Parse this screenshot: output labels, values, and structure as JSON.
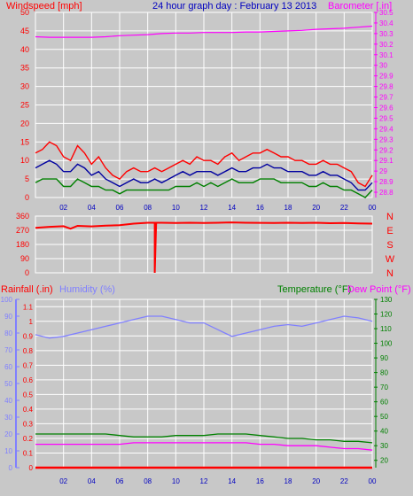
{
  "colors": {
    "background": "#c8c8c8",
    "grid": "#ffffff",
    "wind": "#ff0000",
    "wind_avg": "#0000a0",
    "wind_low": "#008000",
    "barometer": "#ff00ff",
    "direction": "#ff0000",
    "rainfall": "#ff0000",
    "humidity": "#8080ff",
    "temperature": "#008000",
    "dewpoint": "#ff00ff",
    "header_blue": "#0000c0",
    "x_ticks": "#0000c0"
  },
  "header": {
    "windspeed": "Windspeed [mph]",
    "title": "24 hour graph day : February 13 2013",
    "barometer": "Barometer [.in]"
  },
  "labels": {
    "rainfall": "Rainfall (.in)",
    "humidity": "Humidity (%)",
    "temperature": "Temperature (°F)",
    "dewpoint": "Dew Point (°F)"
  },
  "chart_data": [
    {
      "id": "wind",
      "type": "line",
      "title": "24 hour graph day : February 13 2013",
      "x_ticks": [
        "02",
        "04",
        "06",
        "08",
        "10",
        "12",
        "14",
        "16",
        "18",
        "20",
        "22",
        "00"
      ],
      "xlim": [
        0,
        24
      ],
      "ylim_left": [
        0,
        50
      ],
      "y_ticks_left": [
        "0",
        "5",
        "10",
        "15",
        "20",
        "25",
        "30",
        "35",
        "40",
        "45",
        "50"
      ],
      "ylim_right": [
        28.75,
        30.5
      ],
      "y_ticks_right": [
        "28.8",
        "28.9",
        "29",
        "29.1",
        "29.2",
        "29.3",
        "29.4",
        "29.5",
        "29.6",
        "29.7",
        "29.8",
        "29.9",
        "30",
        "30.1",
        "30.2",
        "30.3",
        "30.4",
        "30.5"
      ],
      "grid": true,
      "series": [
        {
          "name": "Windspeed [mph]",
          "axis": "left",
          "color": "#ff0000",
          "x": [
            0,
            0.5,
            1,
            1.5,
            2,
            2.5,
            3,
            3.5,
            4,
            4.5,
            5,
            5.5,
            6,
            6.5,
            7,
            7.5,
            8,
            8.5,
            9,
            9.5,
            10,
            10.5,
            11,
            11.5,
            12,
            12.5,
            13,
            13.5,
            14,
            14.5,
            15,
            15.5,
            16,
            16.5,
            17,
            17.5,
            18,
            18.5,
            19,
            19.5,
            20,
            20.5,
            21,
            21.5,
            22,
            22.5,
            23,
            23.5,
            24
          ],
          "y": [
            12,
            13,
            15,
            14,
            11,
            10,
            14,
            12,
            9,
            11,
            8,
            6,
            5,
            7,
            8,
            7,
            7,
            8,
            7,
            8,
            9,
            10,
            9,
            11,
            10,
            10,
            9,
            11,
            12,
            10,
            11,
            12,
            12,
            13,
            12,
            11,
            11,
            10,
            10,
            9,
            9,
            10,
            9,
            9,
            8,
            7,
            4,
            3,
            6
          ]
        },
        {
          "name": "",
          "axis": "left",
          "color": "#0000a0",
          "x": [
            0,
            0.5,
            1,
            1.5,
            2,
            2.5,
            3,
            3.5,
            4,
            4.5,
            5,
            5.5,
            6,
            6.5,
            7,
            7.5,
            8,
            8.5,
            9,
            9.5,
            10,
            10.5,
            11,
            11.5,
            12,
            12.5,
            13,
            13.5,
            14,
            14.5,
            15,
            15.5,
            16,
            16.5,
            17,
            17.5,
            18,
            18.5,
            19,
            19.5,
            20,
            20.5,
            21,
            21.5,
            22,
            22.5,
            23,
            23.5,
            24
          ],
          "y": [
            8,
            9,
            10,
            9,
            7,
            7,
            9,
            8,
            6,
            7,
            5,
            4,
            3,
            4,
            5,
            4,
            4,
            5,
            4,
            5,
            6,
            7,
            6,
            7,
            7,
            7,
            6,
            7,
            8,
            7,
            7,
            8,
            8,
            9,
            8,
            8,
            7,
            7,
            7,
            6,
            6,
            7,
            6,
            6,
            5,
            4,
            2,
            2,
            4
          ]
        },
        {
          "name": "",
          "axis": "left",
          "color": "#008000",
          "x": [
            0,
            0.5,
            1,
            1.5,
            2,
            2.5,
            3,
            3.5,
            4,
            4.5,
            5,
            5.5,
            6,
            6.5,
            7,
            7.5,
            8,
            8.5,
            9,
            9.5,
            10,
            10.5,
            11,
            11.5,
            12,
            12.5,
            13,
            13.5,
            14,
            14.5,
            15,
            15.5,
            16,
            16.5,
            17,
            17.5,
            18,
            18.5,
            19,
            19.5,
            20,
            20.5,
            21,
            21.5,
            22,
            22.5,
            23,
            23.5,
            24
          ],
          "y": [
            4,
            5,
            5,
            5,
            3,
            3,
            5,
            4,
            3,
            3,
            2,
            2,
            1,
            2,
            2,
            2,
            2,
            2,
            2,
            2,
            3,
            3,
            3,
            4,
            3,
            4,
            3,
            4,
            5,
            4,
            4,
            4,
            5,
            5,
            5,
            4,
            4,
            4,
            4,
            3,
            3,
            4,
            3,
            3,
            2,
            2,
            1,
            0,
            2
          ]
        },
        {
          "name": "Barometer [.in]",
          "axis": "right",
          "color": "#ff00ff",
          "x": [
            0,
            1,
            2,
            3,
            4,
            5,
            6,
            7,
            8,
            9,
            10,
            11,
            12,
            13,
            14,
            15,
            16,
            17,
            18,
            19,
            20,
            21,
            22,
            23,
            24
          ],
          "y": [
            30.27,
            30.265,
            30.265,
            30.265,
            30.265,
            30.27,
            30.28,
            30.285,
            30.29,
            30.3,
            30.305,
            30.305,
            30.31,
            30.31,
            30.31,
            30.315,
            30.315,
            30.32,
            30.325,
            30.33,
            30.34,
            30.345,
            30.35,
            30.36,
            30.37
          ]
        }
      ]
    },
    {
      "id": "direction",
      "type": "line",
      "x_ticks": [],
      "xlim": [
        0,
        24
      ],
      "ylim_left": [
        0,
        360
      ],
      "y_ticks_left": [
        "0",
        "90",
        "180",
        "270",
        "360"
      ],
      "y_ticks_right": [
        "N",
        "W",
        "S",
        "E",
        "N"
      ],
      "grid": true,
      "series": [
        {
          "name": "",
          "axis": "left",
          "color": "#ff0000",
          "x": [
            0,
            1,
            2,
            2.5,
            3,
            4,
            5,
            6,
            7,
            8,
            8.5,
            8.5,
            8.6,
            9,
            10,
            11,
            12,
            13,
            14,
            15,
            16,
            17,
            18,
            19,
            20,
            21,
            22,
            23,
            24
          ],
          "y": [
            285,
            292,
            296,
            280,
            298,
            295,
            300,
            302,
            312,
            318,
            318,
            0,
            318,
            318,
            316,
            318,
            316,
            318,
            320,
            318,
            317,
            316,
            318,
            316,
            318,
            315,
            316,
            314,
            312
          ]
        }
      ]
    },
    {
      "id": "rain-humidity-temp",
      "type": "line",
      "x_ticks": [
        "02",
        "04",
        "06",
        "08",
        "10",
        "12",
        "14",
        "16",
        "18",
        "20",
        "22",
        "00"
      ],
      "xlim": [
        0,
        24
      ],
      "ylim_humidity": [
        0,
        100
      ],
      "y_ticks_humidity": [
        "0",
        "10",
        "20",
        "30",
        "40",
        "50",
        "60",
        "70",
        "80",
        "90",
        "100"
      ],
      "ylim_rain": [
        0,
        1.15
      ],
      "y_ticks_rain": [
        "0",
        "0.1",
        "0.2",
        "0.3",
        "0.4",
        "0.5",
        "0.6",
        "0.7",
        "0.8",
        "0.9",
        "1",
        "1.1"
      ],
      "ylim_right": [
        15,
        130
      ],
      "y_ticks_right": [
        "20",
        "30",
        "40",
        "50",
        "60",
        "70",
        "80",
        "90",
        "100",
        "110",
        "120",
        "130"
      ],
      "grid": true,
      "series": [
        {
          "name": "Humidity (%)",
          "axis": "humidity",
          "color": "#8080ff",
          "x": [
            0,
            1,
            2,
            3,
            4,
            5,
            6,
            7,
            8,
            9,
            10,
            11,
            12,
            13,
            14,
            15,
            16,
            17,
            18,
            19,
            20,
            21,
            22,
            23,
            24
          ],
          "y": [
            79,
            77,
            78,
            80,
            82,
            84,
            86,
            88,
            90,
            90,
            88,
            86,
            86,
            82,
            78,
            80,
            82,
            84,
            85,
            84,
            86,
            88,
            90,
            89,
            87
          ]
        },
        {
          "name": "Temperature (°F)",
          "axis": "right",
          "color": "#008000",
          "x": [
            0,
            1,
            2,
            3,
            4,
            5,
            6,
            7,
            8,
            9,
            10,
            11,
            12,
            13,
            14,
            15,
            16,
            17,
            18,
            19,
            20,
            21,
            22,
            23,
            24
          ],
          "y": [
            38,
            38,
            38,
            38,
            38,
            38,
            37,
            36,
            36,
            36,
            37,
            37,
            37,
            38,
            38,
            38,
            37,
            36,
            35,
            35,
            34,
            34,
            33,
            33,
            32
          ]
        },
        {
          "name": "Dew Point (°F)",
          "axis": "right",
          "color": "#ff00ff",
          "x": [
            0,
            1,
            2,
            3,
            4,
            5,
            6,
            7,
            8,
            9,
            10,
            11,
            12,
            13,
            14,
            15,
            16,
            17,
            18,
            19,
            20,
            21,
            22,
            23,
            24
          ],
          "y": [
            31,
            31,
            31,
            31,
            31,
            31,
            31,
            32,
            32,
            32,
            32,
            32,
            32,
            32,
            32,
            32,
            31,
            31,
            30,
            30,
            30,
            29,
            28,
            28,
            27
          ]
        },
        {
          "name": "Rainfall (.in)",
          "axis": "rain",
          "color": "#ff0000",
          "x": [
            0,
            24
          ],
          "y": [
            0,
            0
          ]
        }
      ]
    }
  ]
}
